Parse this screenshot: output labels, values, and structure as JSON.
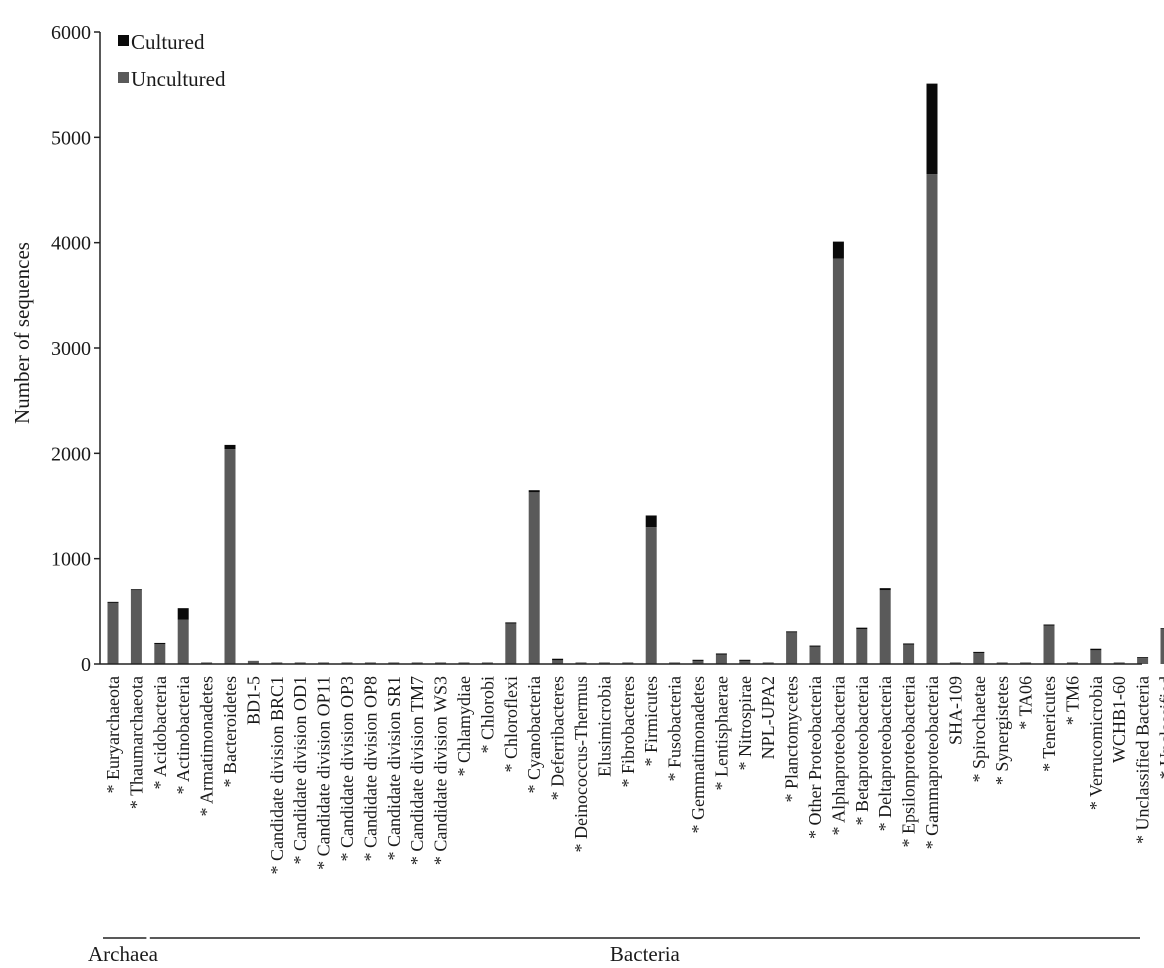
{
  "chart_data": {
    "type": "bar",
    "stacked": true,
    "title": "",
    "xlabel": "",
    "ylabel": "Number of sequences",
    "ylim": [
      0,
      6000
    ],
    "yticks": [
      0,
      1000,
      2000,
      3000,
      4000,
      5000,
      6000
    ],
    "legend": {
      "placement": "top-left"
    },
    "series": [
      {
        "name": "Uncultured",
        "color": "#5a5a5a",
        "values": [
          580,
          700,
          190,
          420,
          15,
          2040,
          30,
          15,
          15,
          15,
          15,
          15,
          15,
          15,
          15,
          15,
          15,
          390,
          1630,
          35,
          15,
          15,
          15,
          1300,
          15,
          35,
          90,
          35,
          15,
          300,
          170,
          3850,
          330,
          700,
          190,
          4650,
          15,
          110,
          15,
          15,
          370,
          15,
          130,
          15,
          55,
          330
        ]
      },
      {
        "name": "Cultured",
        "color": "#0a0a0a",
        "values": [
          10,
          10,
          10,
          110,
          0,
          40,
          0,
          0,
          0,
          0,
          0,
          0,
          0,
          0,
          0,
          0,
          0,
          5,
          20,
          15,
          0,
          0,
          0,
          110,
          0,
          5,
          10,
          5,
          0,
          10,
          5,
          160,
          15,
          20,
          5,
          860,
          0,
          5,
          0,
          0,
          5,
          0,
          15,
          0,
          10,
          10
        ]
      }
    ],
    "categories": [
      "Euryarchaeota",
      "Thaumarchaeota",
      "Acidobacteria",
      "Actinobacteria",
      "Armatimonadetes",
      "Bacteroidetes",
      "BD1-5",
      "Candidate division BRC1",
      "Candidate division OD1",
      "Candidate division OP11",
      "Candidate division OP3",
      "Candidate division OP8",
      "Candidate division SR1",
      "Candidate division TM7",
      "Candidate division WS3",
      "Chlamydiae",
      "Chlorobi",
      "Chloroflexi",
      "Cyanobacteria",
      "Deferribacteres",
      "Deinococcus-Thermus",
      "Elusimicrobia",
      "Fibrobacteres",
      "Firmicutes",
      "Fusobacteria",
      "Gemmatimonadetes",
      "Lentisphaerae",
      "Nitrospirae",
      "NPL-UPA2",
      "Planctomycetes",
      "Other Proteobacteria",
      "Alphaproteobacteria",
      "Betaproteobacteria",
      "Deltaproteobacteria",
      "Epsilonproteobacteria",
      "Gammaproteobacteria",
      "SHA-109",
      "Spirochaetae",
      "Synergistetes",
      "TA06",
      "Tenericutes",
      "TM6",
      "Verrucomicrobia",
      "WCHB1-60",
      "Unclassified Bacteria",
      "Unclassified"
    ],
    "starred": [
      true,
      true,
      true,
      true,
      true,
      true,
      false,
      true,
      true,
      true,
      true,
      true,
      true,
      true,
      true,
      true,
      true,
      true,
      true,
      true,
      true,
      false,
      true,
      true,
      true,
      true,
      true,
      true,
      false,
      true,
      true,
      true,
      true,
      true,
      true,
      true,
      false,
      true,
      true,
      true,
      true,
      true,
      true,
      false,
      true,
      true
    ],
    "star_symbol": "*",
    "groups": [
      {
        "name": "Archaea",
        "from": 0,
        "to": 1
      },
      {
        "name": "Bacteria",
        "from": 2,
        "to": 45
      }
    ]
  }
}
